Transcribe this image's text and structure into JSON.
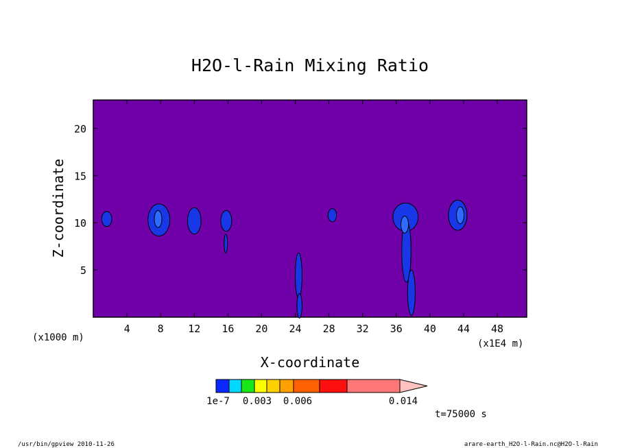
{
  "chart_data": {
    "type": "heatmap",
    "title": "H2O-l-Rain Mixing Ratio",
    "xlabel": "X-coordinate",
    "ylabel": "Z-coordinate",
    "x_units_left": "(x1000 m)",
    "x_units_right": "(x1E4 m)",
    "xlim": [
      0,
      51.5
    ],
    "ylim": [
      0,
      23
    ],
    "x_ticks": [
      4,
      8,
      12,
      16,
      20,
      24,
      28,
      32,
      36,
      40,
      44,
      48
    ],
    "x_tick_labels": [
      "4",
      "8",
      "12",
      "16",
      "20",
      "24",
      "28",
      "32",
      "36",
      "40",
      "44",
      "48"
    ],
    "y_ticks": [
      5,
      10,
      15,
      20
    ],
    "y_tick_labels": [
      "5",
      "10",
      "15",
      "20"
    ],
    "background_color": "#7000a8",
    "colorbar": {
      "colors": [
        "#0a28ff",
        "#00d8ff",
        "#18e818",
        "#ffff00",
        "#ffd000",
        "#ffa000",
        "#ff6000",
        "#ff1010",
        "#ff7878",
        "#ffc0c0"
      ],
      "labels": [
        "1e-7",
        "0.003",
        "0.006",
        "0.014"
      ]
    },
    "regions": [
      {
        "shape": "ellipse",
        "cx": 1.6,
        "cy": 10.4,
        "rx": 0.6,
        "ry": 0.8,
        "color": "#1838e8"
      },
      {
        "shape": "ellipse",
        "cx": 7.8,
        "cy": 10.3,
        "rx": 1.3,
        "ry": 1.7,
        "color": "#1838e8"
      },
      {
        "shape": "ellipse",
        "cx": 7.7,
        "cy": 10.4,
        "rx": 0.45,
        "ry": 0.9,
        "color": "#2d6cff"
      },
      {
        "shape": "ellipse",
        "cx": 12.0,
        "cy": 10.2,
        "rx": 0.8,
        "ry": 1.4,
        "color": "#1838e8"
      },
      {
        "shape": "ellipse",
        "cx": 15.8,
        "cy": 10.2,
        "rx": 0.65,
        "ry": 1.1,
        "color": "#1838e8"
      },
      {
        "shape": "ellipse",
        "cx": 15.75,
        "cy": 7.8,
        "rx": 0.2,
        "ry": 1.0,
        "color": "#1838e8"
      },
      {
        "shape": "ellipse",
        "cx": 24.4,
        "cy": 4.4,
        "rx": 0.4,
        "ry": 2.4,
        "color": "#1838e8"
      },
      {
        "shape": "ellipse",
        "cx": 24.5,
        "cy": 1.2,
        "rx": 0.3,
        "ry": 1.3,
        "color": "#1838e8"
      },
      {
        "shape": "ellipse",
        "cx": 28.4,
        "cy": 10.8,
        "rx": 0.5,
        "ry": 0.7,
        "color": "#1838e8"
      },
      {
        "shape": "ellipse",
        "cx": 37.1,
        "cy": 10.6,
        "rx": 1.5,
        "ry": 1.5,
        "color": "#1838e8"
      },
      {
        "shape": "ellipse",
        "cx": 37.2,
        "cy": 7.0,
        "rx": 0.55,
        "ry": 3.3,
        "color": "#1838e8"
      },
      {
        "shape": "ellipse",
        "cx": 37.0,
        "cy": 9.8,
        "rx": 0.45,
        "ry": 0.9,
        "color": "#2d6cff"
      },
      {
        "shape": "ellipse",
        "cx": 37.8,
        "cy": 2.6,
        "rx": 0.45,
        "ry": 2.4,
        "color": "#1838e8"
      },
      {
        "shape": "ellipse",
        "cx": 43.3,
        "cy": 10.8,
        "rx": 1.1,
        "ry": 1.6,
        "color": "#1838e8"
      },
      {
        "shape": "ellipse",
        "cx": 43.6,
        "cy": 10.8,
        "rx": 0.45,
        "ry": 0.9,
        "color": "#2d6cff"
      }
    ]
  },
  "annotations": {
    "time": "t=75000 s",
    "footer_left": "/usr/bin/gpview  2010-11-26",
    "footer_right": "arare-earth_H2O-l-Rain.nc@H2O-l-Rain"
  }
}
